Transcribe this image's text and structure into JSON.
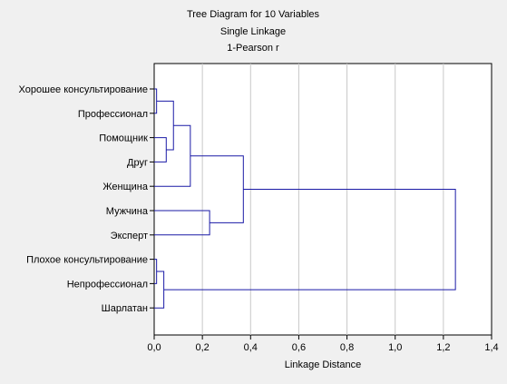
{
  "chart_data": {
    "type": "dendrogram",
    "title": "Tree Diagram for 10  Variables",
    "subtitle_lines": [
      "Single Linkage",
      "1-Pearson r"
    ],
    "xlabel": "Linkage Distance",
    "ylabel": "",
    "xlim": [
      0,
      1.4
    ],
    "xticks": [
      0,
      0.2,
      0.4,
      0.6,
      0.8,
      1.0,
      1.2,
      1.4
    ],
    "xtick_labels": [
      "0,0",
      "0,2",
      "0,4",
      "0,6",
      "0,8",
      "1,0",
      "1,2",
      "1,4"
    ],
    "grid": true,
    "leaf_order": [
      "Хорошее консультирование",
      "Профессионал",
      "Помощник",
      "Друг",
      "Женщина",
      "Мужчина",
      "Эксперт",
      "Плохое консультирование",
      "Непрофессионал",
      "Шарлатан"
    ],
    "merges": [
      {
        "a": 0,
        "b": 1,
        "distance": 0.01
      },
      {
        "a": 7,
        "b": 8,
        "distance": 0.01
      },
      {
        "a": 2,
        "b": 3,
        "distance": 0.05
      },
      {
        "a": "c1",
        "b": 9,
        "distance": 0.04
      },
      {
        "a": "c0",
        "b": "c2",
        "distance": 0.08
      },
      {
        "a": "c4",
        "b": 4,
        "distance": 0.15
      },
      {
        "a": 5,
        "b": 6,
        "distance": 0.23
      },
      {
        "a": "c5",
        "b": "c6",
        "distance": 0.37
      },
      {
        "a": "c7",
        "b": "c3",
        "distance": 1.25
      }
    ],
    "line_color": "#1a1aa6"
  }
}
